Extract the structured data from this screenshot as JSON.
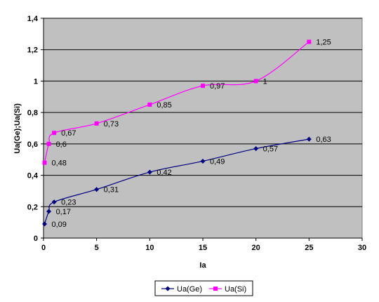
{
  "chart_data": {
    "type": "line",
    "title": "",
    "xlabel": "Ia",
    "ylabel": "Ua(Ge);Ua(Si)",
    "xlim": [
      0,
      30
    ],
    "ylim": [
      0,
      1.4
    ],
    "x_ticks": [
      "0",
      "5",
      "10",
      "15",
      "20",
      "25",
      "30"
    ],
    "y_ticks": [
      "0",
      "0,2",
      "0,4",
      "0,6",
      "0,8",
      "1",
      "1,2",
      "1,4"
    ],
    "grid": "horizontal",
    "plot_background": "#c0c0c0",
    "legend": "bottom",
    "series": [
      {
        "name": "Ua(Ge)",
        "color": "#000080",
        "marker": "diamond",
        "x": [
          0.1,
          0.5,
          1,
          5,
          10,
          15,
          20,
          25
        ],
        "y": [
          0.09,
          0.17,
          0.23,
          0.31,
          0.42,
          0.49,
          0.57,
          0.63
        ],
        "labels": [
          "0,09",
          "0,17",
          "0,23",
          "0,31",
          "0,42",
          "0,49",
          "0,57",
          "0,63"
        ]
      },
      {
        "name": "Ua(Si)",
        "color": "#ff00ff",
        "marker": "square",
        "x": [
          0.1,
          0.5,
          1,
          5,
          10,
          15,
          20,
          25
        ],
        "y": [
          0.48,
          0.6,
          0.67,
          0.73,
          0.85,
          0.97,
          1.0,
          1.25
        ],
        "labels": [
          "0,48",
          "0,6",
          "0,67",
          "0,73",
          "0,85",
          "0,97",
          "1",
          "1,25"
        ]
      }
    ]
  }
}
